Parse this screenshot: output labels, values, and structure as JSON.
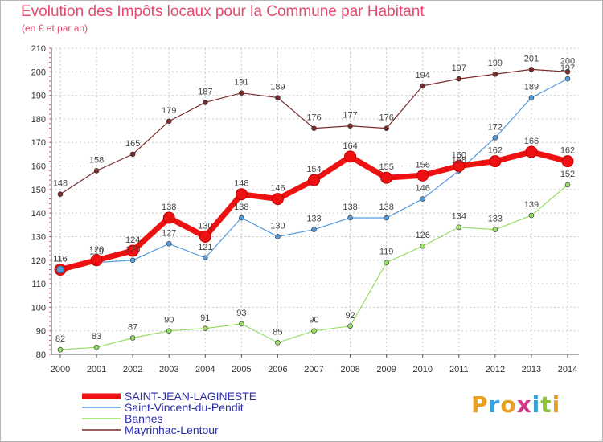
{
  "header": {
    "title": "Evolution des Impôts locaux pour la Commune par Habitant",
    "subtitle": "(en € et par an)"
  },
  "logo": {
    "text": "Proxiti",
    "colors": [
      "#e8a020",
      "#3aa0d8",
      "#e8a020",
      "#d03a8a",
      "#3aa0d8",
      "#8cc43c",
      "#e8a020"
    ]
  },
  "chart_data": {
    "type": "line",
    "x": [
      "2000",
      "2001",
      "2002",
      "2003",
      "2004",
      "2005",
      "2006",
      "2007",
      "2008",
      "2009",
      "2010",
      "2011",
      "2012",
      "2013",
      "2014"
    ],
    "ylim": [
      80,
      210
    ],
    "yticks": [
      80,
      90,
      100,
      110,
      120,
      130,
      140,
      150,
      160,
      170,
      180,
      190,
      200,
      210
    ],
    "grid": true,
    "legend_position": "bottom-left",
    "series": [
      {
        "name": "SAINT-JEAN-LAGINESTE",
        "color": "#ee1111",
        "values": [
          116,
          120,
          124,
          138,
          130,
          148,
          146,
          154,
          164,
          155,
          156,
          160,
          162,
          166,
          162
        ]
      },
      {
        "name": "Saint-Vincent-du-Pendit",
        "color": "#5599dd",
        "values": [
          116,
          119,
          120,
          127,
          121,
          138,
          130,
          133,
          138,
          138,
          146,
          158,
          172,
          189,
          197
        ]
      },
      {
        "name": "Bannes",
        "color": "#99dd66",
        "values": [
          82,
          83,
          87,
          90,
          91,
          93,
          85,
          90,
          92,
          119,
          126,
          134,
          133,
          139,
          152
        ]
      },
      {
        "name": "Mayrinhac-Lentour",
        "color": "#7a2b2b",
        "values": [
          148,
          158,
          165,
          179,
          187,
          191,
          189,
          176,
          177,
          176,
          194,
          197,
          199,
          201,
          200
        ]
      }
    ]
  }
}
